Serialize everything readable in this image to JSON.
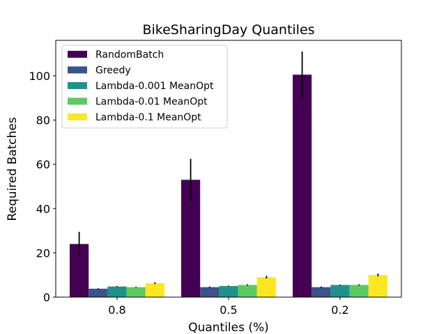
{
  "chart_data": {
    "type": "bar",
    "title": "BikeSharingDay Quantiles",
    "xlabel": "Quantiles (%)",
    "ylabel": "Required Batches",
    "categories": [
      "0.8",
      "0.5",
      "0.2"
    ],
    "ylim": [
      0,
      116
    ],
    "yticks": [
      0,
      20,
      40,
      60,
      80,
      100
    ],
    "legend_position": "upper-left",
    "grid": false,
    "series": [
      {
        "name": "RandomBatch",
        "color": "#440154",
        "values": [
          24.0,
          53.0,
          100.5
        ],
        "errors": [
          5.5,
          9.5,
          10.5
        ]
      },
      {
        "name": "Greedy",
        "color": "#3b528b",
        "values": [
          3.8,
          4.5,
          4.5
        ],
        "errors": [
          0.2,
          0.3,
          0.3
        ]
      },
      {
        "name": "Lambda-0.001 MeanOpt",
        "color": "#21918c",
        "values": [
          4.8,
          5.0,
          5.5
        ],
        "errors": [
          0.2,
          0.2,
          0.2
        ]
      },
      {
        "name": "Lambda-0.01 MeanOpt",
        "color": "#5ec962",
        "values": [
          4.5,
          5.5,
          5.5
        ],
        "errors": [
          0.2,
          0.3,
          0.3
        ]
      },
      {
        "name": "Lambda-0.1 MeanOpt",
        "color": "#fde725",
        "values": [
          6.3,
          9.0,
          10.0
        ],
        "errors": [
          0.4,
          0.6,
          0.6
        ]
      }
    ]
  }
}
